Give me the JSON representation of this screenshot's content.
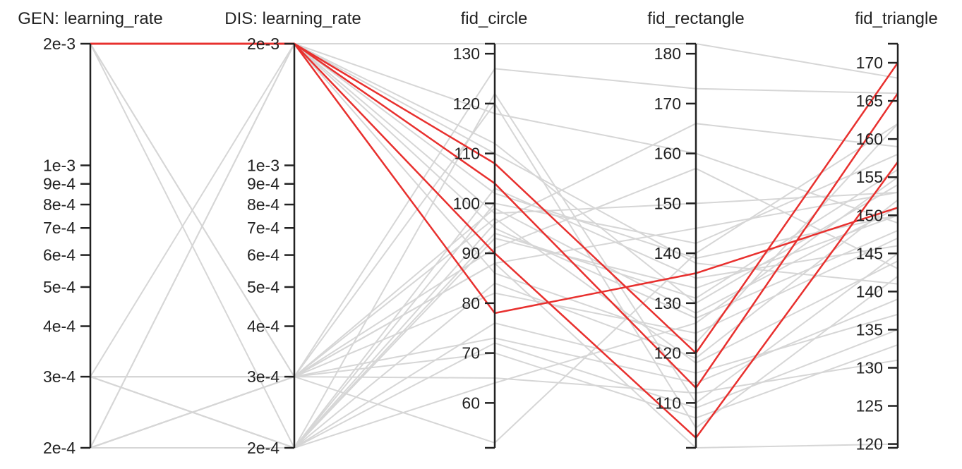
{
  "chart_data": {
    "type": "parallel_coordinates",
    "colors": {
      "background": "#d6d6d6",
      "highlight": "#e8302e",
      "axis": "#222222"
    },
    "axes": [
      {
        "key": "gen_lr",
        "label": "GEN: learning_rate",
        "scale": "log",
        "domain": [
          0.0002,
          0.002
        ],
        "ticks": [
          {
            "v": 0.002,
            "t": "2e-3"
          },
          {
            "v": 0.001,
            "t": "1e-3"
          },
          {
            "v": 0.0009,
            "t": "9e-4"
          },
          {
            "v": 0.0008,
            "t": "8e-4"
          },
          {
            "v": 0.0007,
            "t": "7e-4"
          },
          {
            "v": 0.0006,
            "t": "6e-4"
          },
          {
            "v": 0.0005,
            "t": "5e-4"
          },
          {
            "v": 0.0004,
            "t": "4e-4"
          },
          {
            "v": 0.0003,
            "t": "3e-4"
          },
          {
            "v": 0.0002,
            "t": "2e-4"
          }
        ]
      },
      {
        "key": "dis_lr",
        "label": "DIS: learning_rate",
        "scale": "log",
        "domain": [
          0.0002,
          0.002
        ],
        "ticks": [
          {
            "v": 0.002,
            "t": "2e-3"
          },
          {
            "v": 0.001,
            "t": "1e-3"
          },
          {
            "v": 0.0009,
            "t": "9e-4"
          },
          {
            "v": 0.0008,
            "t": "8e-4"
          },
          {
            "v": 0.0007,
            "t": "7e-4"
          },
          {
            "v": 0.0006,
            "t": "6e-4"
          },
          {
            "v": 0.0005,
            "t": "5e-4"
          },
          {
            "v": 0.0004,
            "t": "4e-4"
          },
          {
            "v": 0.0003,
            "t": "3e-4"
          },
          {
            "v": 0.0002,
            "t": "2e-4"
          }
        ]
      },
      {
        "key": "fid_circle",
        "label": "fid_circle",
        "scale": "linear",
        "domain": [
          51,
          132
        ],
        "ticks": [
          {
            "v": 60,
            "t": "60"
          },
          {
            "v": 70,
            "t": "70"
          },
          {
            "v": 80,
            "t": "80"
          },
          {
            "v": 90,
            "t": "90"
          },
          {
            "v": 100,
            "t": "100"
          },
          {
            "v": 110,
            "t": "110"
          },
          {
            "v": 120,
            "t": "120"
          },
          {
            "v": 130,
            "t": "130"
          }
        ]
      },
      {
        "key": "fid_rectangle",
        "label": "fid_rectangle",
        "scale": "linear",
        "domain": [
          101,
          182
        ],
        "ticks": [
          {
            "v": 110,
            "t": "110"
          },
          {
            "v": 120,
            "t": "120"
          },
          {
            "v": 130,
            "t": "130"
          },
          {
            "v": 140,
            "t": "140"
          },
          {
            "v": 150,
            "t": "150"
          },
          {
            "v": 160,
            "t": "160"
          },
          {
            "v": 170,
            "t": "170"
          },
          {
            "v": 180,
            "t": "180"
          }
        ]
      },
      {
        "key": "fid_triangle",
        "label": "fid_triangle",
        "scale": "linear",
        "domain": [
          119.5,
          172.5
        ],
        "ticks": [
          {
            "v": 120,
            "t": "120"
          },
          {
            "v": 125,
            "t": "125"
          },
          {
            "v": 130,
            "t": "130"
          },
          {
            "v": 135,
            "t": "135"
          },
          {
            "v": 140,
            "t": "140"
          },
          {
            "v": 145,
            "t": "145"
          },
          {
            "v": 150,
            "t": "150"
          },
          {
            "v": 155,
            "t": "155"
          },
          {
            "v": 160,
            "t": "160"
          },
          {
            "v": 165,
            "t": "165"
          },
          {
            "v": 170,
            "t": "170"
          }
        ]
      }
    ],
    "highlighted_lines": [
      [
        0.002,
        0.002,
        108,
        120,
        170
      ],
      [
        0.002,
        0.002,
        104,
        113,
        166
      ],
      [
        0.002,
        0.002,
        90,
        103,
        157
      ],
      [
        0.002,
        0.002,
        78,
        136,
        151
      ]
    ],
    "background_lines": [
      [
        0.002,
        0.0003,
        127,
        173,
        166
      ],
      [
        0.002,
        0.0002,
        122,
        110,
        145
      ],
      [
        0.002,
        0.002,
        132,
        182,
        168
      ],
      [
        0.0003,
        0.0003,
        52,
        140,
        162
      ],
      [
        0.0003,
        0.002,
        95,
        127,
        148
      ],
      [
        0.0002,
        0.002,
        112,
        130,
        154
      ],
      [
        0.0002,
        0.0003,
        65,
        112,
        131
      ],
      [
        0.0003,
        0.0003,
        88,
        101,
        120
      ],
      [
        0.0002,
        0.0002,
        64,
        126,
        155
      ],
      [
        0.002,
        0.002,
        86,
        122,
        162
      ],
      [
        0.002,
        0.002,
        98,
        150,
        153
      ],
      [
        0.002,
        0.002,
        110,
        138,
        141
      ],
      [
        0.002,
        0.002,
        118,
        160,
        149
      ],
      [
        0.0002,
        0.0003,
        73,
        114,
        139
      ],
      [
        0.0002,
        0.0003,
        97,
        118,
        144
      ],
      [
        0.0002,
        0.0003,
        82,
        124,
        147
      ],
      [
        0.0002,
        0.0002,
        93,
        133,
        150
      ],
      [
        0.0003,
        0.0002,
        100,
        142,
        158
      ],
      [
        0.0003,
        0.0003,
        70,
        107,
        133
      ],
      [
        0.0003,
        0.0002,
        103,
        135,
        146
      ],
      [
        0.0002,
        0.0003,
        91,
        157,
        143
      ],
      [
        0.0003,
        0.0002,
        84,
        119,
        152
      ],
      [
        0.0002,
        0.0002,
        76,
        116,
        137
      ],
      [
        0.0003,
        0.0003,
        99,
        128,
        151
      ],
      [
        0.0002,
        0.0002,
        94,
        131,
        156
      ],
      [
        0.0003,
        0.0003,
        88,
        145,
        153
      ],
      [
        0.0002,
        0.0002,
        72,
        109,
        135
      ],
      [
        0.0002,
        0.002,
        102,
        139,
        150
      ],
      [
        0.002,
        0.0003,
        120,
        105,
        142
      ],
      [
        0.0003,
        0.0002,
        96,
        166,
        159
      ]
    ]
  }
}
